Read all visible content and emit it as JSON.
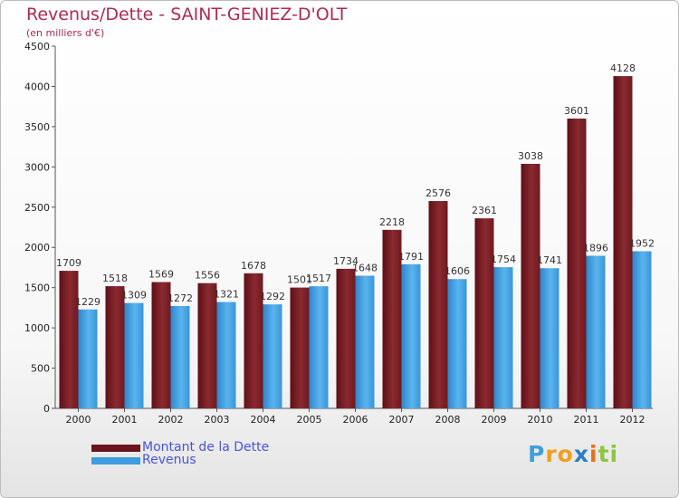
{
  "title": "Revenus/Dette - SAINT-GENIEZ-D'OLT",
  "subtitle": "(en milliers d'€)",
  "brand": {
    "letters": [
      "P",
      "r",
      "o",
      "x",
      "i",
      "t",
      "i"
    ],
    "colors": [
      "#3f9fd8",
      "#f0a020",
      "#f0a020",
      "#2c7fc0",
      "#e8701a",
      "#8cc63f",
      "#8cc63f"
    ]
  },
  "chart_data": {
    "type": "bar",
    "categories": [
      "2000",
      "2001",
      "2002",
      "2003",
      "2004",
      "2005",
      "2006",
      "2007",
      "2008",
      "2009",
      "2010",
      "2011",
      "2012"
    ],
    "series": [
      {
        "name": "Montant de la Dette",
        "color": "#7a1c24",
        "values": [
          1709,
          1518,
          1569,
          1556,
          1678,
          1501,
          1734,
          2218,
          2576,
          2361,
          3038,
          3601,
          4128
        ]
      },
      {
        "name": "Revenus",
        "color": "#3d9de0",
        "values": [
          1229,
          1309,
          1272,
          1321,
          1292,
          1517,
          1648,
          1791,
          1606,
          1754,
          1741,
          1896,
          1952
        ]
      }
    ],
    "yticks": [
      0,
      500,
      1000,
      1500,
      2000,
      2500,
      3000,
      3500,
      4000,
      4500
    ],
    "ylim": [
      0,
      4500
    ],
    "grid": false,
    "legend": "bottom-left"
  }
}
